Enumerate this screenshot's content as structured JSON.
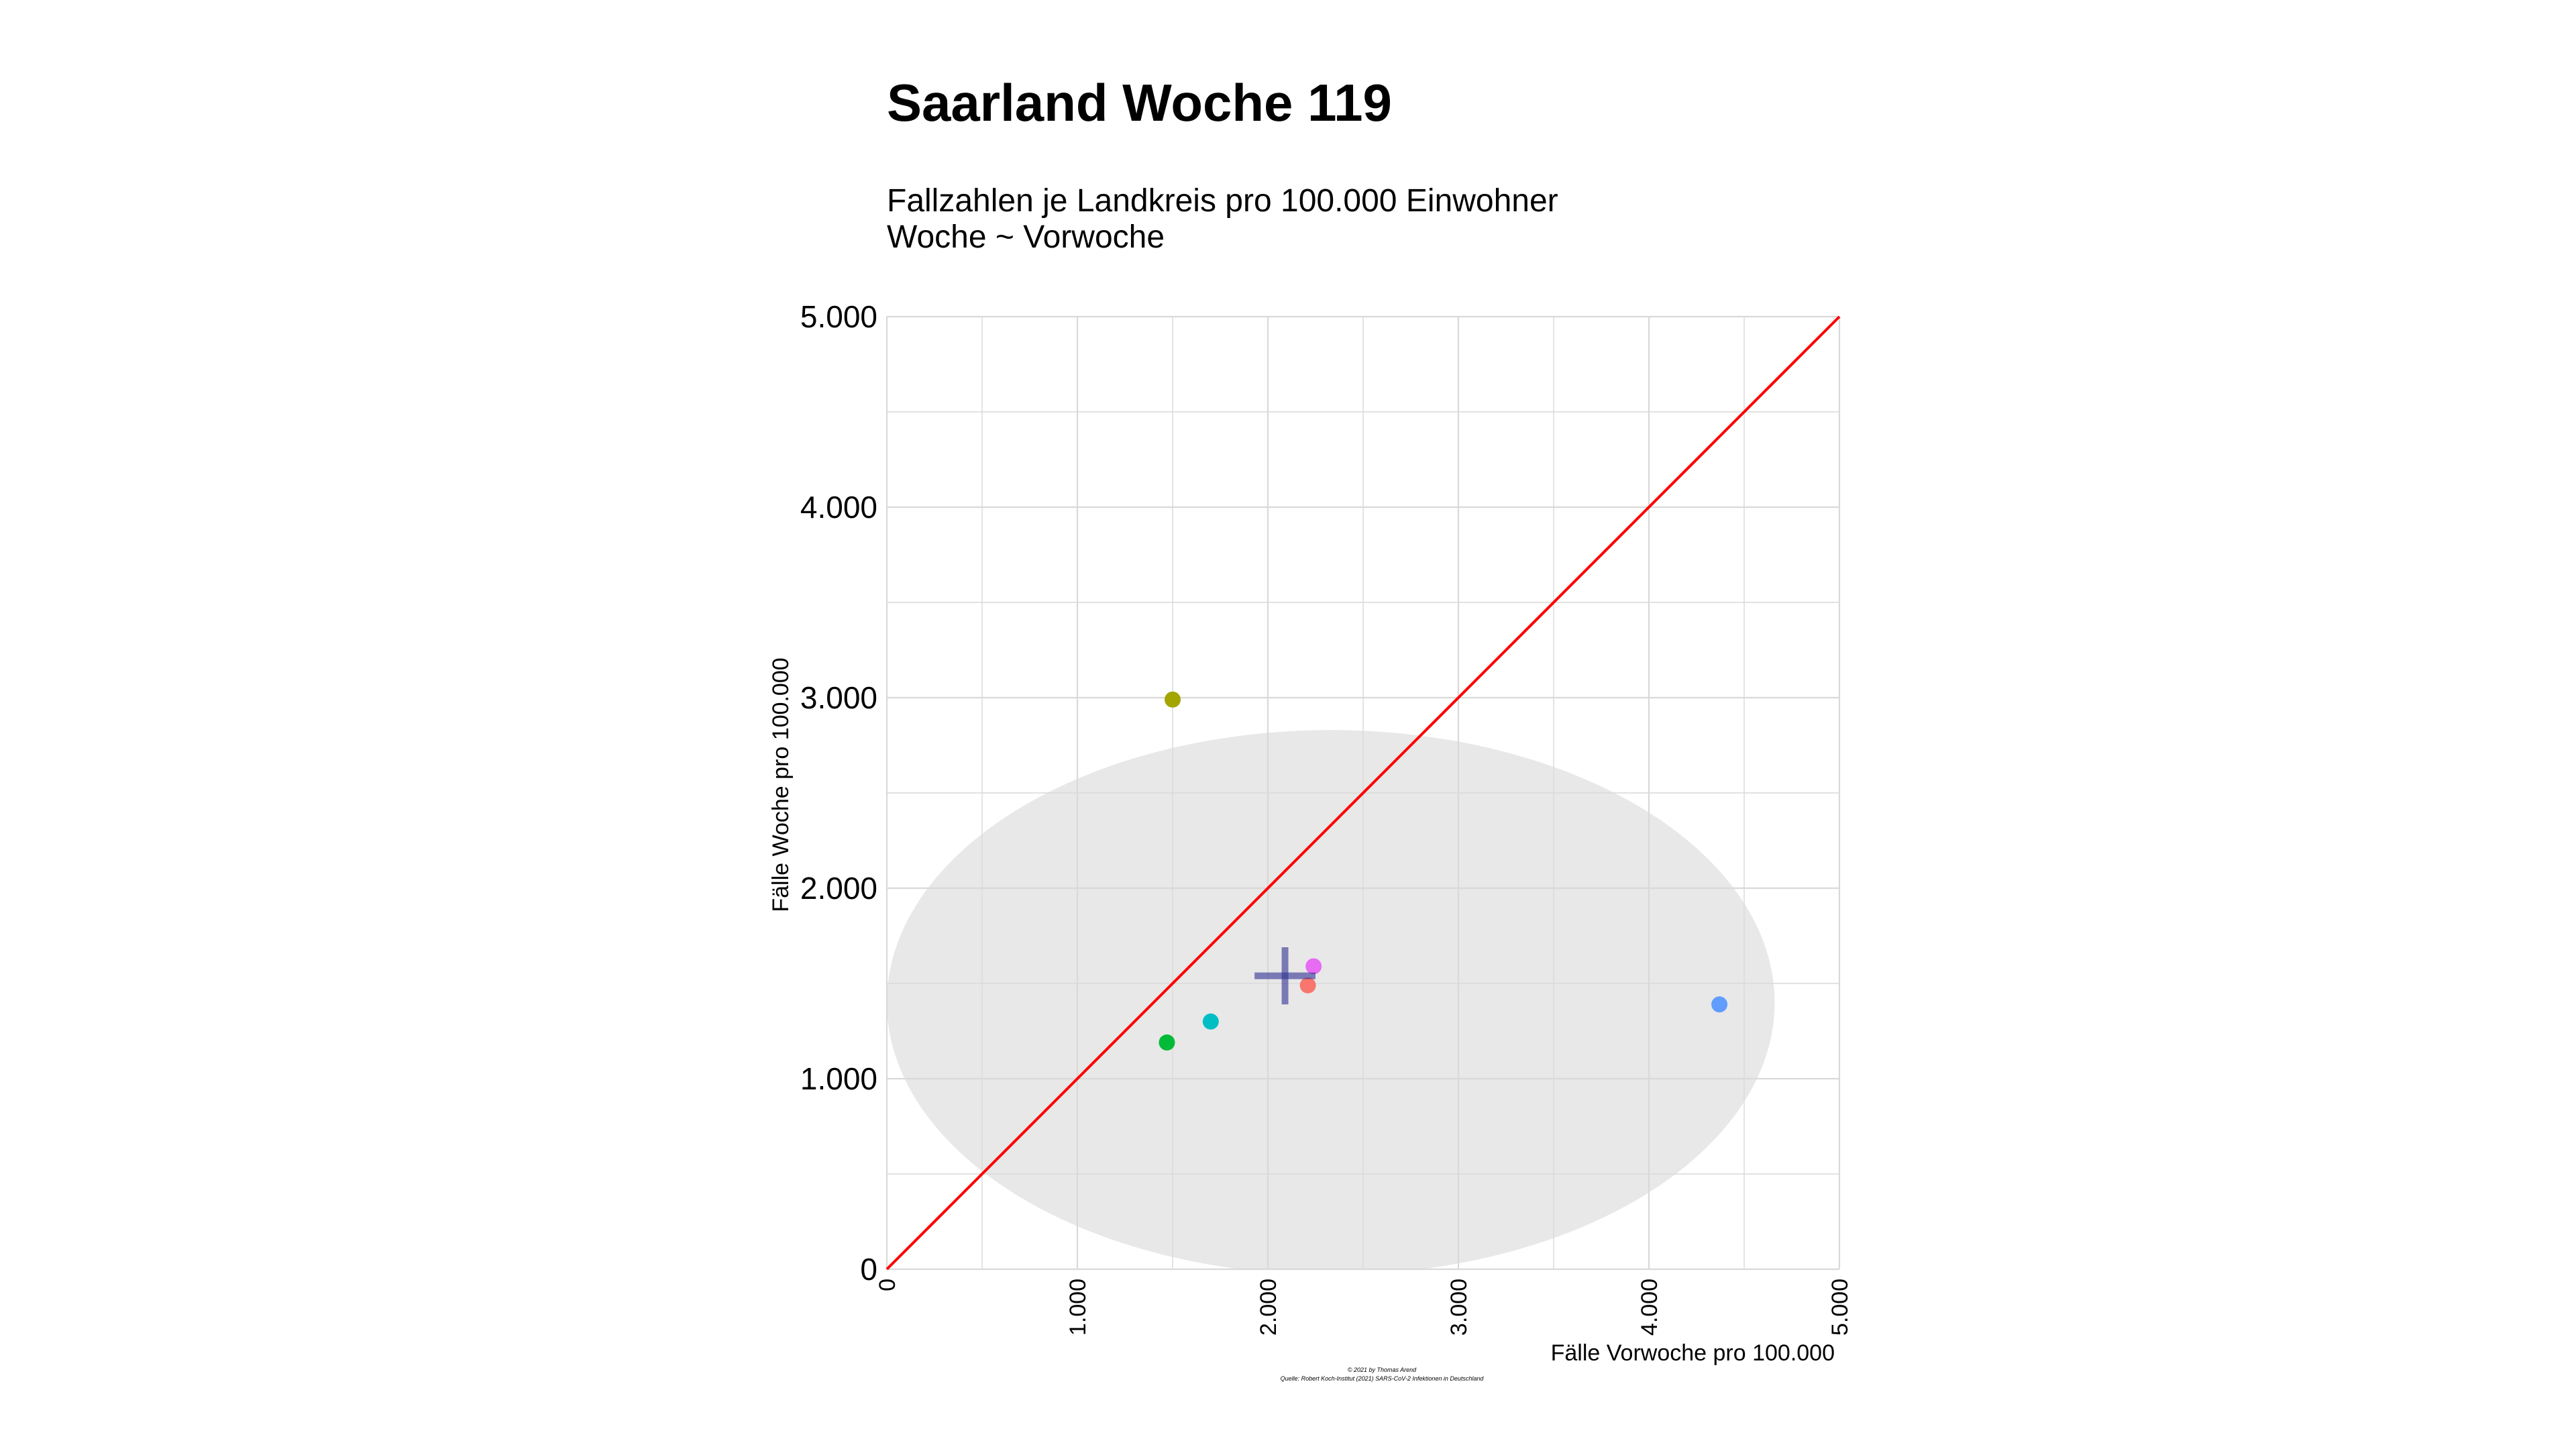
{
  "page": {
    "title": "Saarland Woche 119",
    "subtitle_line1": "Fallzahlen je Landkreis pro 100.000 Einwohner",
    "subtitle_line2": "Woche ~ Vorwoche",
    "caption_line1": "© 2021 by Thomas Arend",
    "caption_line2": "Quelle: Robert Koch-Institut (2021) SARS-CoV-2 Infektionen in Deutschland"
  },
  "chart_data": {
    "type": "scatter",
    "xlabel": "Fälle Vorwoche pro 100.000",
    "ylabel": "Fälle Woche pro 100.000",
    "xlim": [
      0,
      5000
    ],
    "ylim": [
      0,
      5000
    ],
    "x_ticks": [
      {
        "value": 0,
        "label": "0"
      },
      {
        "value": 1000,
        "label": "1.000"
      },
      {
        "value": 2000,
        "label": "2.000"
      },
      {
        "value": 3000,
        "label": "3.000"
      },
      {
        "value": 4000,
        "label": "4.000"
      },
      {
        "value": 5000,
        "label": "5.000"
      }
    ],
    "y_ticks": [
      {
        "value": 0,
        "label": "0"
      },
      {
        "value": 1000,
        "label": "1.000"
      },
      {
        "value": 2000,
        "label": "2.000"
      },
      {
        "value": 3000,
        "label": "3.000"
      },
      {
        "value": 4000,
        "label": "4.000"
      },
      {
        "value": 5000,
        "label": "5.000"
      }
    ],
    "grid": true,
    "points": [
      {
        "x": 1500,
        "y": 2990,
        "color": "#A3A500"
      },
      {
        "x": 1470,
        "y": 1190,
        "color": "#00BA38"
      },
      {
        "x": 1700,
        "y": 1300,
        "color": "#00BFC4"
      },
      {
        "x": 2210,
        "y": 1490,
        "color": "#F8766D"
      },
      {
        "x": 2240,
        "y": 1590,
        "color": "#E76BF3"
      },
      {
        "x": 4370,
        "y": 1390,
        "color": "#619CFF"
      }
    ],
    "mean_cross": {
      "x": 2090,
      "y": 1540,
      "x_half": 160,
      "y_half": 150,
      "color": "#2E3192"
    },
    "ellipse": {
      "cx": 2330,
      "cy": 1400,
      "rx": 2330,
      "ry": 1430,
      "color": "#E8E8E8"
    },
    "reference_line": {
      "from": [
        0,
        0
      ],
      "to": [
        5000,
        5000
      ],
      "color": "#FF0000"
    }
  }
}
